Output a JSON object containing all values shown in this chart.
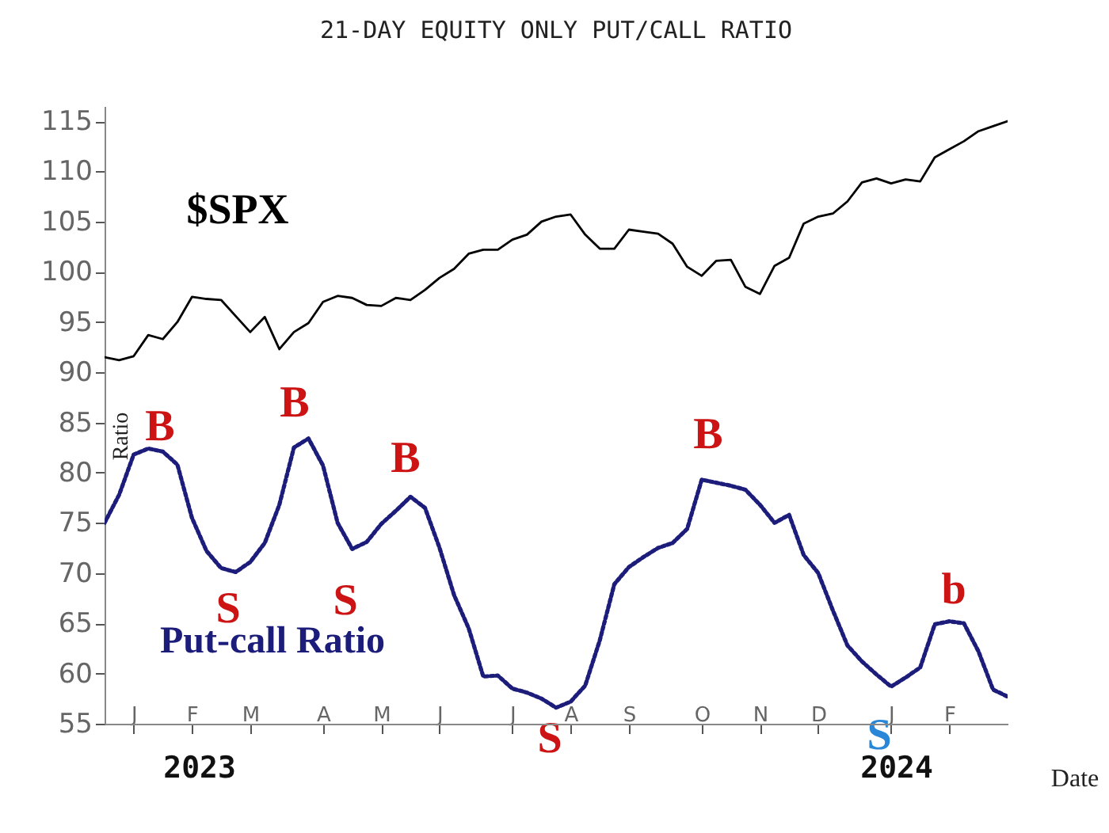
{
  "chart_data": {
    "type": "line",
    "title": "21-DAY EQUITY ONLY PUT/CALL RATIO",
    "xlabel": "Date",
    "ylabel": "Ratio",
    "categories": [
      null,
      null,
      "J",
      null,
      null,
      null,
      "F",
      null,
      null,
      null,
      "M",
      null,
      null,
      null,
      null,
      "A",
      null,
      null,
      null,
      "M",
      null,
      null,
      null,
      "J",
      null,
      null,
      null,
      null,
      "J",
      null,
      null,
      null,
      "A",
      null,
      null,
      null,
      "S",
      null,
      null,
      null,
      null,
      "O",
      null,
      null,
      null,
      "N",
      null,
      null,
      null,
      "D",
      null,
      null,
      null,
      null,
      "J",
      null,
      null,
      null,
      "F",
      null,
      null,
      null,
      null
    ],
    "ylim": [
      55,
      116.5
    ],
    "yticks": [
      55,
      60,
      65,
      70,
      75,
      80,
      85,
      90,
      95,
      100,
      105,
      110,
      115
    ],
    "series": [
      {
        "name": "$SPX",
        "color": "#000000",
        "line_style": "solid",
        "values": [
          91.5,
          91.2,
          91.6,
          93.7,
          93.3,
          95,
          97.5,
          97.3,
          97.2,
          95.6,
          94,
          95.5,
          92.3,
          94,
          94.9,
          97,
          97.6,
          97.4,
          96.7,
          96.6,
          97.4,
          97.2,
          98.2,
          99.4,
          100.3,
          101.8,
          102.2,
          102.2,
          103.2,
          103.7,
          105,
          105.5,
          105.7,
          103.7,
          102.3,
          102.3,
          104.2,
          104,
          103.8,
          102.8,
          100.5,
          99.6,
          101.1,
          101.2,
          98.5,
          97.8,
          100.6,
          101.4,
          104.8,
          105.5,
          105.8,
          107,
          108.9,
          109.3,
          108.8,
          109.2,
          109,
          111.4,
          112.2,
          113,
          114,
          114.5,
          115
        ]
      },
      {
        "name": "Put-call Ratio",
        "color": "#1c1c7a",
        "line_style": "dotted",
        "values": [
          75,
          77.8,
          81.8,
          82.4,
          82.1,
          80.8,
          75.5,
          72.2,
          70.5,
          70.1,
          71.1,
          73,
          76.8,
          82.5,
          83.4,
          80.7,
          75,
          72.4,
          73.1,
          74.9,
          76.2,
          77.6,
          76.5,
          72.5,
          67.8,
          64.5,
          59.7,
          59.8,
          58.5,
          58.1,
          57.5,
          56.6,
          57.2,
          58.8,
          63.3,
          68.9,
          70.6,
          71.6,
          72.5,
          73,
          74.4,
          79.3,
          79,
          78.7,
          78.3,
          76.8,
          75,
          75.8,
          71.8,
          70,
          66.3,
          62.8,
          61.2,
          59.9,
          58.7,
          59.6,
          60.6,
          64.9,
          65.2,
          65,
          62.2,
          58.4,
          57.7
        ]
      }
    ],
    "annotations": [
      "B",
      "S",
      "B",
      "S",
      "B",
      "S",
      "B",
      "S",
      "b",
      "2023",
      "2024"
    ]
  }
}
